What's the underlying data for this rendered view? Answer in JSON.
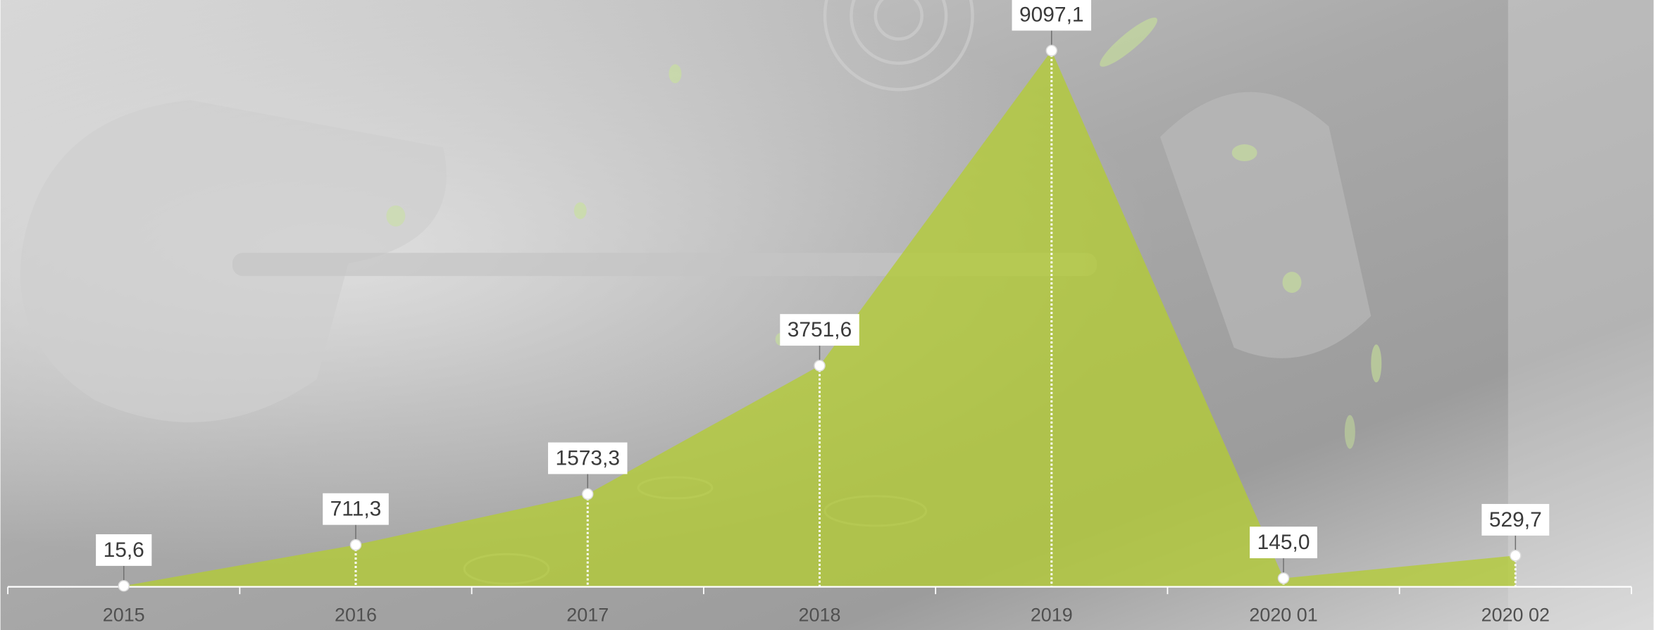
{
  "chart_data": {
    "type": "area",
    "categories": [
      "2015",
      "2016",
      "2017",
      "2018",
      "2019",
      "2020 01",
      "2020 02"
    ],
    "values": [
      15.6,
      711.3,
      1573.3,
      3751.6,
      9097.1,
      145.0,
      529.7
    ],
    "value_labels": [
      "15,6",
      "711,3",
      "1573,3",
      "3751,6",
      "9097,1",
      "145,0",
      "529,7"
    ],
    "color": "#b3cc35",
    "ylim": [
      0,
      9500
    ]
  }
}
